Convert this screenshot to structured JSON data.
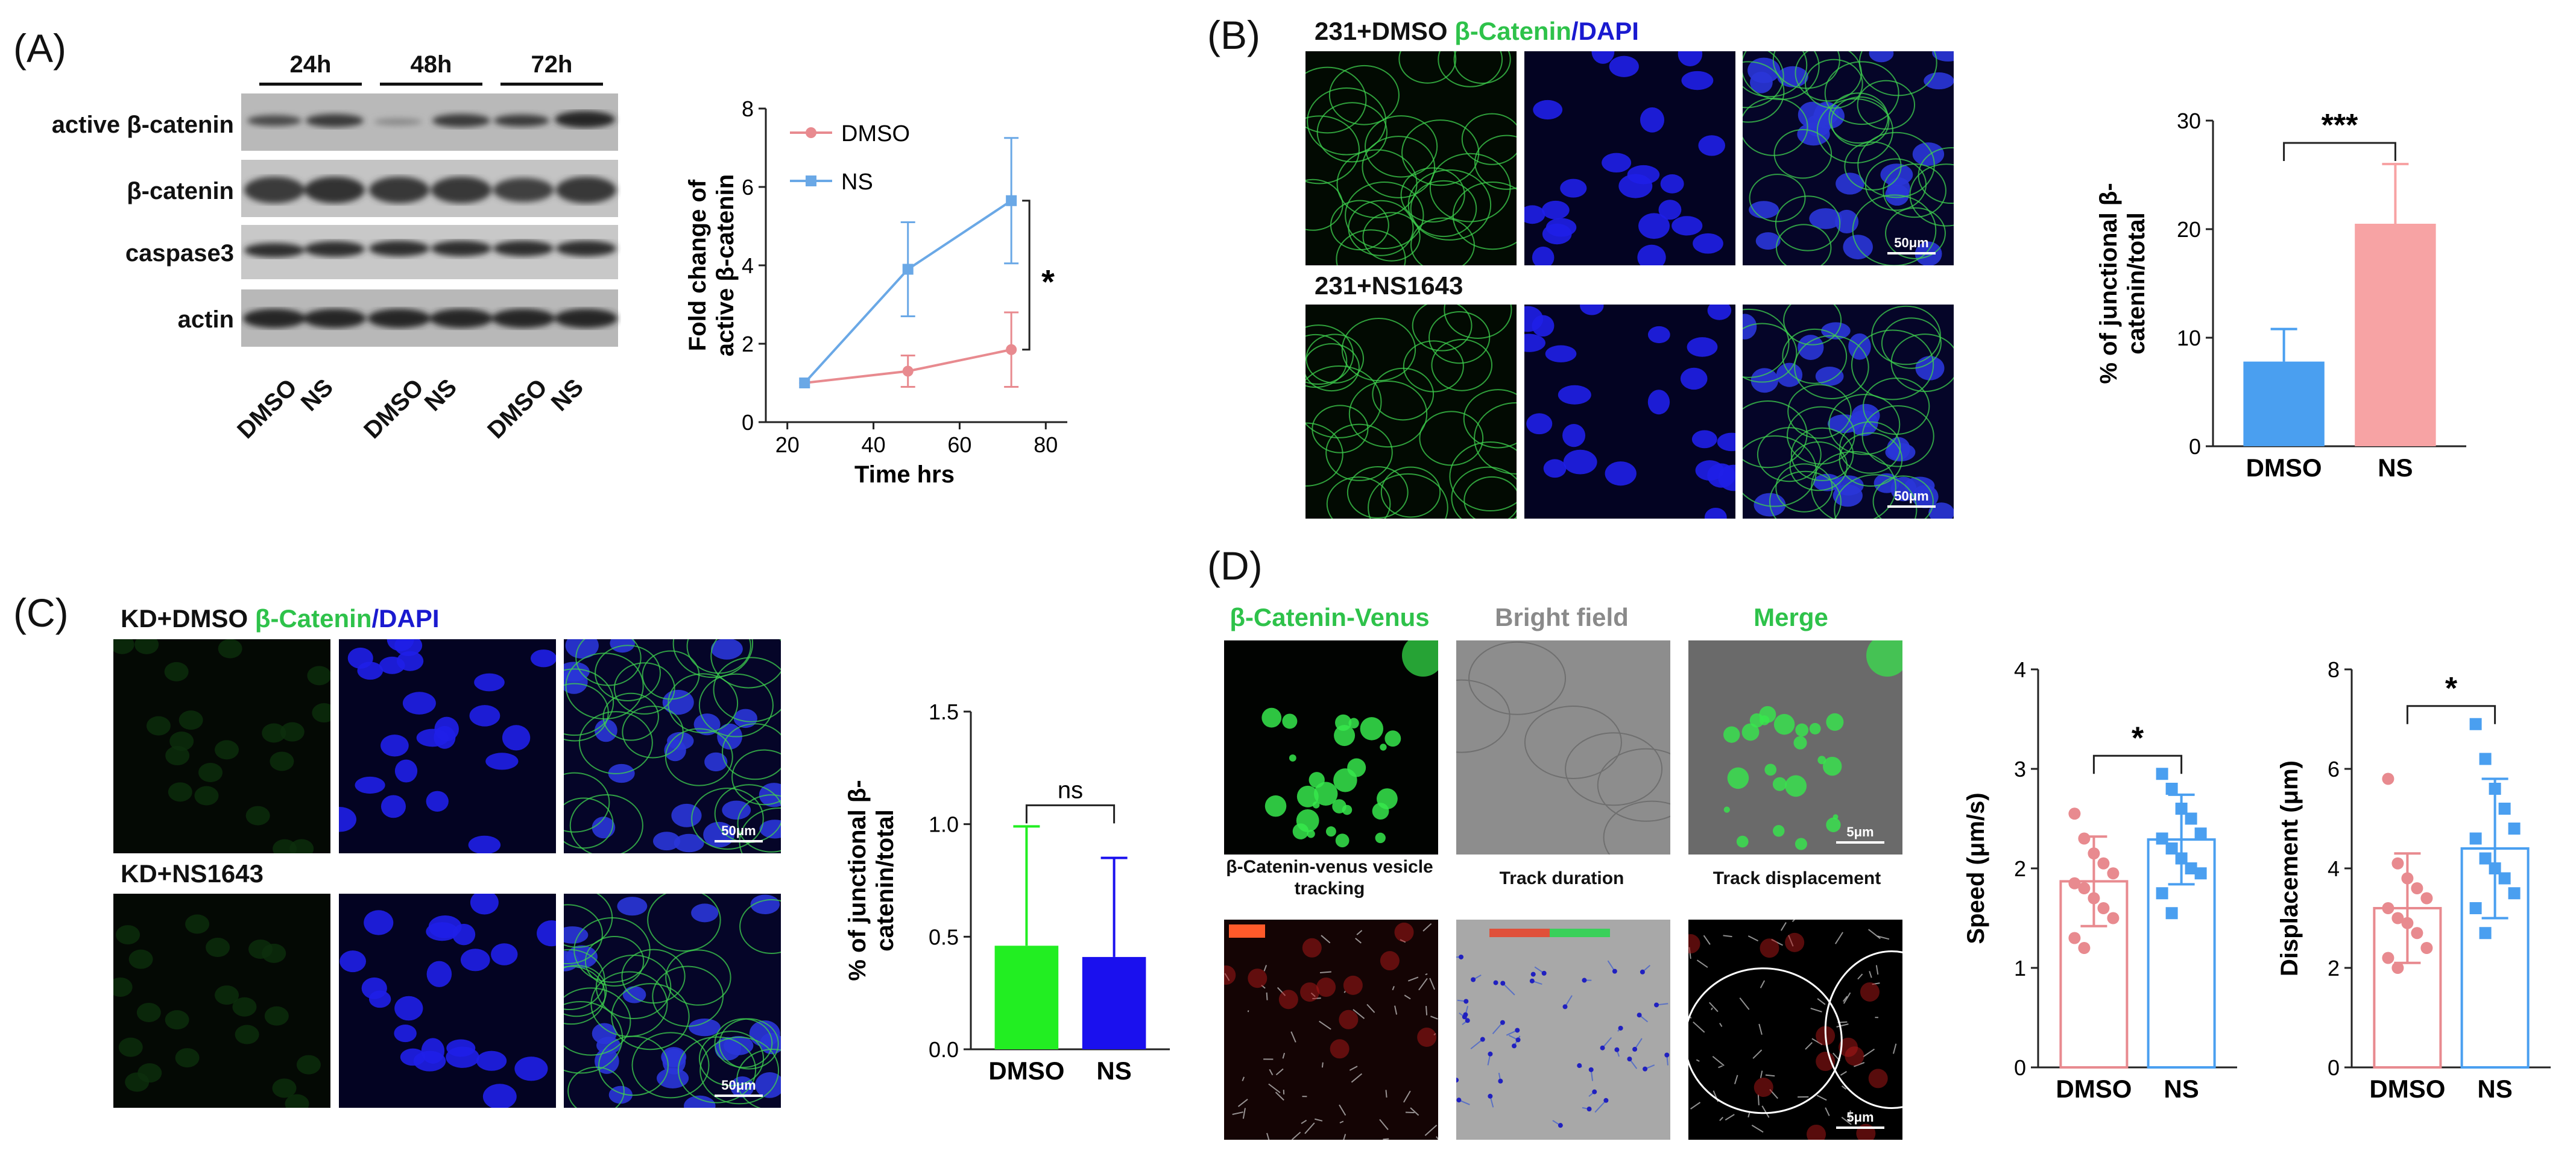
{
  "panel_labels": [
    "(A)",
    "(B)",
    "(C)",
    "(D)"
  ],
  "blot": {
    "time_labels": [
      "24h",
      "48h",
      "72h"
    ],
    "row_labels": [
      "active β-catenin",
      "β-catenin",
      "caspase3",
      "actin"
    ],
    "lane_labels": [
      "DMSO",
      "NS",
      "DMSO",
      "NS",
      "DMSO",
      "NS"
    ]
  },
  "panel_b": {
    "row1_prefix": "231+DMSO ",
    "stain_green": "β-Catenin",
    "stain_sep": "/",
    "stain_blue": "DAPI",
    "row2_label": "231+NS1643",
    "scale": "50μm"
  },
  "panel_c": {
    "row1_prefix": "KD+DMSO ",
    "stain_green": "β-Catenin",
    "stain_sep": "/",
    "stain_blue": "DAPI",
    "row2_label": "KD+NS1643",
    "scale": "50μm"
  },
  "panel_d": {
    "headers": [
      "β-Catenin-Venus",
      "Bright field",
      "Merge"
    ],
    "row2_headers": [
      "β-Catenin-venus vesicle tracking",
      "Track duration",
      "Track displacement"
    ],
    "scale": "5μm"
  },
  "chart_data": [
    {
      "type": "line",
      "ylabel": "Fold change of active β-catenin",
      "xlabel": "Time hrs",
      "xlim": [
        15,
        85
      ],
      "ylim": [
        0,
        8
      ],
      "xticks": [
        20,
        40,
        60,
        80
      ],
      "yticks": [
        0,
        2,
        4,
        6,
        8
      ],
      "legend": "top-left",
      "significance": "*",
      "series": [
        {
          "name": "DMSO",
          "color": "#e88a8f",
          "x": [
            24,
            48,
            72
          ],
          "y": [
            1.0,
            1.3,
            1.85
          ],
          "err": [
            0.0,
            0.4,
            0.95
          ]
        },
        {
          "name": "NS",
          "color": "#6aa8e6",
          "x": [
            24,
            48,
            72
          ],
          "y": [
            1.0,
            3.9,
            5.65
          ],
          "err": [
            0.0,
            1.2,
            1.6
          ]
        }
      ]
    },
    {
      "type": "bar",
      "ylabel": "% of junctional β-catenin/total",
      "categories": [
        "DMSO",
        "NS"
      ],
      "values": [
        7.8,
        20.5
      ],
      "err": [
        3.0,
        5.5
      ],
      "colors": [
        "#4a9ff0",
        "#f7a3a4"
      ],
      "ylim": [
        0,
        30
      ],
      "yticks": [
        0,
        10,
        20,
        30
      ],
      "significance": "***"
    },
    {
      "type": "bar",
      "ylabel": "% of junctional β-catenin/total",
      "categories": [
        "DMSO",
        "NS"
      ],
      "values": [
        0.46,
        0.41
      ],
      "err": [
        0.53,
        0.44
      ],
      "colors": [
        "#22ee22",
        "#1a10ee"
      ],
      "ylim": [
        0,
        1.5
      ],
      "yticks": [
        0.0,
        0.5,
        1.0,
        1.5
      ],
      "significance": "ns"
    },
    {
      "type": "scatter",
      "ylabel": "Speed (μm/s)",
      "categories": [
        "DMSO",
        "NS"
      ],
      "means": [
        1.87,
        2.29
      ],
      "err": [
        0.45,
        0.45
      ],
      "colors": [
        "#e88a8f",
        "#4a9ff0"
      ],
      "ylim": [
        0,
        4
      ],
      "yticks": [
        0,
        1,
        2,
        3,
        4
      ],
      "significance": "*",
      "points": [
        [
          2.55,
          2.3,
          2.15,
          2.05,
          1.95,
          1.85,
          1.8,
          1.7,
          1.6,
          1.5,
          1.3,
          1.2
        ],
        [
          2.95,
          2.8,
          2.6,
          2.5,
          2.35,
          2.3,
          2.2,
          2.1,
          2.0,
          1.95,
          1.75,
          1.55
        ]
      ]
    },
    {
      "type": "scatter",
      "ylabel": "Displacement (μm)",
      "categories": [
        "DMSO",
        "NS"
      ],
      "means": [
        3.2,
        4.4
      ],
      "err": [
        1.1,
        1.4
      ],
      "colors": [
        "#e88a8f",
        "#4a9ff0"
      ],
      "ylim": [
        0,
        8
      ],
      "yticks": [
        0,
        2,
        4,
        6,
        8
      ],
      "significance": "*",
      "points": [
        [
          5.8,
          4.1,
          3.8,
          3.6,
          3.4,
          3.2,
          3.0,
          2.9,
          2.7,
          2.4,
          2.2,
          2.0
        ],
        [
          6.9,
          6.2,
          5.6,
          5.2,
          4.8,
          4.6,
          4.2,
          4.0,
          3.8,
          3.5,
          3.2,
          2.7
        ]
      ]
    }
  ]
}
